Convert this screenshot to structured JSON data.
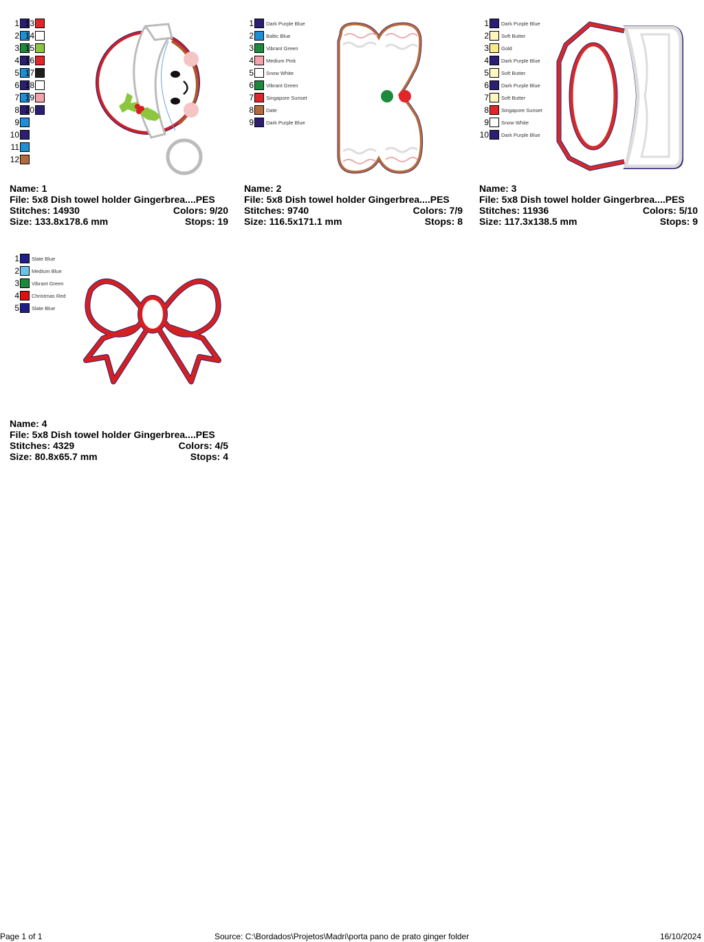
{
  "designs": [
    {
      "name_label": "Name: 1",
      "file_label": "File: 5x8 Dish towel holder Gingerbrea....PES",
      "stitches_label": "Stitches: 14930",
      "colors_label": "Colors: 9/20",
      "size_label": "Size: 133.8x178.6 mm",
      "stops_label": "Stops: 19",
      "palette": [
        {
          "n": "1",
          "color": "#2b1f73"
        },
        {
          "n": "2",
          "color": "#1c8fd6"
        },
        {
          "n": "3",
          "color": "#1b8a3c"
        },
        {
          "n": "4",
          "color": "#2b1f73"
        },
        {
          "n": "5",
          "color": "#1c8fd6"
        },
        {
          "n": "6",
          "color": "#2b1f73"
        },
        {
          "n": "7",
          "color": "#1c8fd6"
        },
        {
          "n": "8",
          "color": "#2b1f73"
        },
        {
          "n": "9",
          "color": "#1c8fd6"
        },
        {
          "n": "10",
          "color": "#2b1f73"
        },
        {
          "n": "11",
          "color": "#1c8fd6"
        },
        {
          "n": "12",
          "color": "#b36b3e"
        },
        {
          "n": "13",
          "color": "#e0262a"
        },
        {
          "n": "14",
          "color": "#ffffff"
        },
        {
          "n": "15",
          "color": "#8cc63f"
        },
        {
          "n": "16",
          "color": "#e0262a"
        },
        {
          "n": "17",
          "color": "#1e1e1e"
        },
        {
          "n": "18",
          "color": "#ffffff"
        },
        {
          "n": "19",
          "color": "#f4a3aa"
        },
        {
          "n": "20",
          "color": "#2b1f73"
        }
      ]
    },
    {
      "name_label": "Name: 2",
      "file_label": "File: 5x8 Dish towel holder Gingerbrea....PES",
      "stitches_label": "Stitches: 9740",
      "colors_label": "Colors: 7/9",
      "size_label": "Size: 116.5x171.1 mm",
      "stops_label": "Stops: 8",
      "palette": [
        {
          "n": "1",
          "name": "Dark Purple Blue",
          "color": "#2b1f73"
        },
        {
          "n": "2",
          "name": "Baltic Blue",
          "color": "#1c8fd6"
        },
        {
          "n": "3",
          "name": "Vibrant Green",
          "color": "#1b8a3c"
        },
        {
          "n": "4",
          "name": "Medium Pink",
          "color": "#f4a3aa"
        },
        {
          "n": "5",
          "name": "Snow White",
          "color": "#ffffff"
        },
        {
          "n": "6",
          "name": "Vibrant Green",
          "color": "#1b8a3c"
        },
        {
          "n": "7",
          "name": "Singapore Sunset",
          "color": "#e0262a"
        },
        {
          "n": "8",
          "name": "Date",
          "color": "#b36b3e"
        },
        {
          "n": "9",
          "name": "Dark Purple Blue",
          "color": "#2b1f73"
        }
      ]
    },
    {
      "name_label": "Name: 3",
      "file_label": "File: 5x8 Dish towel holder Gingerbrea....PES",
      "stitches_label": "Stitches: 11936",
      "colors_label": "Colors: 5/10",
      "size_label": "Size: 117.3x138.5 mm",
      "stops_label": "Stops: 9",
      "palette": [
        {
          "n": "1",
          "name": "Dark Purple Blue",
          "color": "#2b1f73"
        },
        {
          "n": "2",
          "name": "Soft Butter",
          "color": "#fff6c0"
        },
        {
          "n": "3",
          "name": "Gold",
          "color": "#fbe98a"
        },
        {
          "n": "4",
          "name": "Dark Purple Blue",
          "color": "#2b1f73"
        },
        {
          "n": "5",
          "name": "Soft Butter",
          "color": "#fff6c0"
        },
        {
          "n": "6",
          "name": "Dark Purple Blue",
          "color": "#2b1f73"
        },
        {
          "n": "7",
          "name": "Soft Butter",
          "color": "#fff6c0"
        },
        {
          "n": "8",
          "name": "Singapore Sunset",
          "color": "#e0262a"
        },
        {
          "n": "9",
          "name": "Snow White",
          "color": "#ffffff"
        },
        {
          "n": "10",
          "name": "Dark Purple Blue",
          "color": "#2b1f73"
        }
      ]
    },
    {
      "name_label": "Name: 4",
      "file_label": "File: 5x8 Dish towel holder Gingerbrea....PES",
      "stitches_label": "Stitches: 4329",
      "colors_label": "Colors: 4/5",
      "size_label": "Size: 80.8x65.7 mm",
      "stops_label": "Stops: 4",
      "palette": [
        {
          "n": "1",
          "name": "Slate Blue",
          "color": "#1f1f8c"
        },
        {
          "n": "2",
          "name": "Medium Blue",
          "color": "#6ec1ea"
        },
        {
          "n": "3",
          "name": "Vibrant Green",
          "color": "#1b8a3c"
        },
        {
          "n": "4",
          "name": "Christmas Red",
          "color": "#e01010"
        },
        {
          "n": "5",
          "name": "Slate Blue",
          "color": "#1f1f8c"
        }
      ]
    }
  ],
  "footer": {
    "page": "Page 1 of 1",
    "source": "Source: C:\\Bordados\\Projetos\\Madri\\porta pano de prato ginger folder",
    "date": "16/10/2024"
  }
}
